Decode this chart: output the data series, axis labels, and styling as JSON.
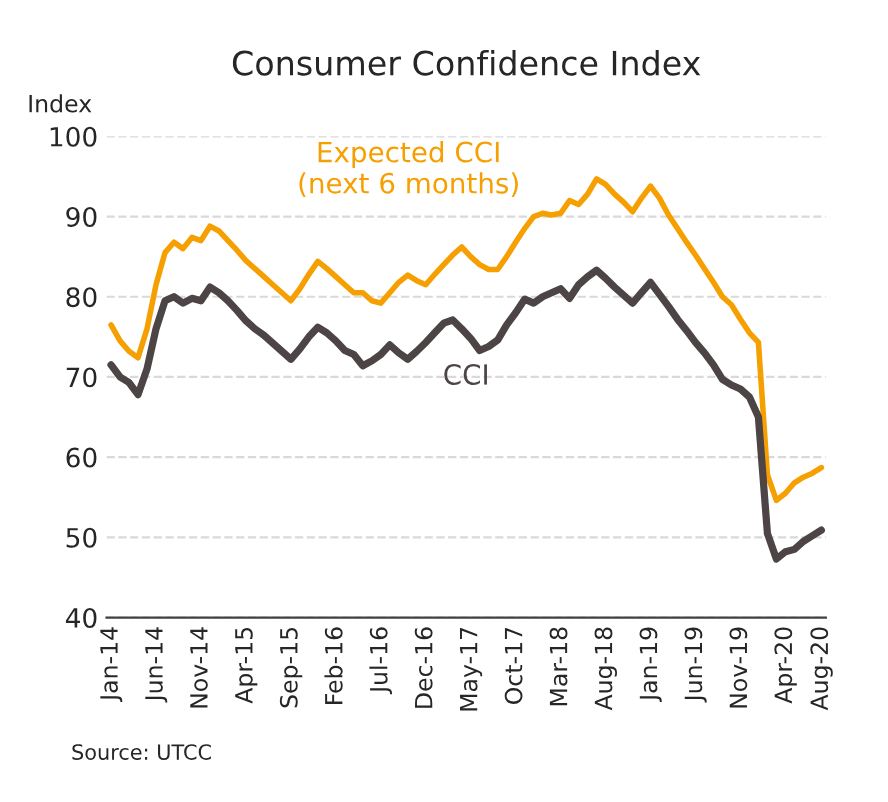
{
  "chart_data": {
    "type": "line",
    "title": "Consumer Confidence Index",
    "ylabel": "Index",
    "categories": [
      "Jan-14",
      null,
      null,
      null,
      null,
      "Jun-14",
      null,
      null,
      null,
      null,
      "Nov-14",
      null,
      null,
      null,
      null,
      "Apr-15",
      null,
      null,
      null,
      null,
      "Sep-15",
      null,
      null,
      null,
      null,
      "Feb-16",
      null,
      null,
      null,
      null,
      "Jul-16",
      null,
      null,
      null,
      null,
      "Dec-16",
      null,
      null,
      null,
      null,
      "May-17",
      null,
      null,
      null,
      null,
      "Oct-17",
      null,
      null,
      null,
      null,
      "Mar-18",
      null,
      null,
      null,
      null,
      "Aug-18",
      null,
      null,
      null,
      null,
      "Jan-19",
      null,
      null,
      null,
      null,
      "Jun-19",
      null,
      null,
      null,
      null,
      "Nov-19",
      null,
      null,
      null,
      null,
      "Apr-20",
      null,
      null,
      null,
      "Aug-20"
    ],
    "series": [
      {
        "name": "Expected CCI\n(next 6 months)",
        "color": "#f5a000",
        "values": [
          76.5,
          74.5,
          73.2,
          72.4,
          76,
          81.5,
          85.5,
          86.8,
          86,
          87.4,
          87,
          88.8,
          88.2,
          87,
          85.8,
          84.5,
          83.5,
          82.5,
          81.5,
          80.5,
          79.5,
          81,
          82.8,
          84.4,
          83.5,
          82.5,
          81.5,
          80.5,
          80.5,
          79.5,
          79.2,
          80.5,
          81.8,
          82.7,
          82,
          81.5,
          82.8,
          84,
          85.2,
          86.2,
          85,
          84,
          83.4,
          83.4,
          85,
          86.8,
          88.5,
          90,
          90.4,
          90.2,
          90.4,
          92,
          91.5,
          92.8,
          94.7,
          94,
          92.8,
          91.8,
          90.6,
          92.3,
          93.8,
          92.3,
          90.2,
          88.5,
          86.8,
          85.2,
          83.5,
          81.8,
          80,
          79,
          77.2,
          75.5,
          74.3,
          57.8,
          54.6,
          55.5,
          56.8,
          57.5,
          58,
          58.7
        ]
      },
      {
        "name": "CCI",
        "color": "#4d4446",
        "values": [
          71.5,
          70,
          69.3,
          67.8,
          71,
          76,
          79.5,
          80,
          79.2,
          79.8,
          79.5,
          81.2,
          80.5,
          79.5,
          78.3,
          77,
          76,
          75.2,
          74.2,
          73.2,
          72.2,
          73.5,
          75,
          76.2,
          75.5,
          74.5,
          73.3,
          72.8,
          71.4,
          72,
          72.8,
          74,
          73,
          72.2,
          73.2,
          74.3,
          75.5,
          76.7,
          77.1,
          76,
          74.8,
          73.3,
          73.8,
          74.6,
          76.5,
          78,
          79.7,
          79.2,
          80,
          80.5,
          81,
          79.8,
          81.5,
          82.5,
          83.3,
          82.3,
          81.2,
          80.2,
          79.2,
          80.5,
          81.8,
          80.3,
          78.8,
          77.2,
          75.8,
          74.3,
          73,
          71.5,
          69.7,
          69,
          68.5,
          67.5,
          65,
          50.5,
          47.3,
          48.2,
          48.5,
          49.5,
          50.2,
          50.9
        ]
      }
    ],
    "ylim": [
      40,
      100
    ],
    "yticks": [
      40,
      50,
      60,
      70,
      80,
      90,
      100
    ],
    "grid": "y",
    "annotations": [
      "Source: UTCC"
    ]
  }
}
